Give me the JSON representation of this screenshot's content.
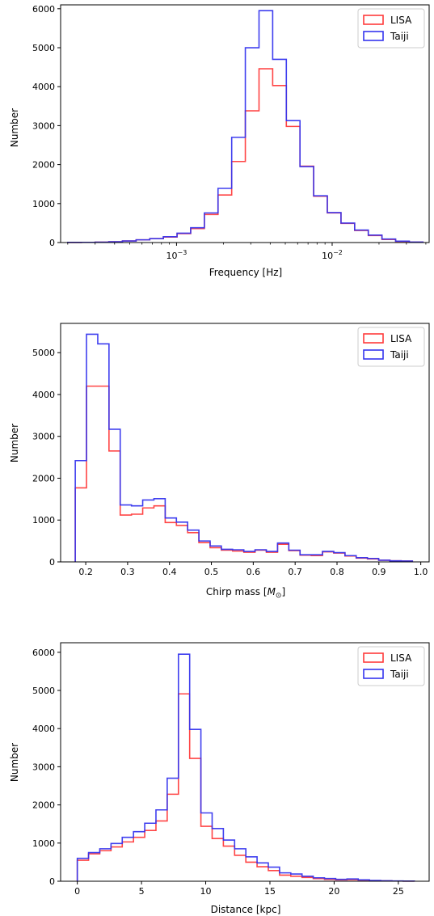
{
  "colors": {
    "LISA": "#ff3b3b",
    "Taiji": "#3535ee"
  },
  "chart_data": [
    {
      "type": "histogram",
      "xlabel": "Frequency [Hz]",
      "ylabel": "Number",
      "xscale": "log",
      "xlim": [
        0.00018,
        0.042
      ],
      "ylim": [
        0,
        6100
      ],
      "yticks": [
        0,
        1000,
        2000,
        3000,
        4000,
        5000,
        6000
      ],
      "xticks": [
        {
          "value": 0.001,
          "base": "10",
          "exp": "−3"
        },
        {
          "value": 0.01,
          "base": "10",
          "exp": "−2"
        }
      ],
      "legend": "top-right",
      "bin_edges": [
        0.0002,
        0.000245,
        0.0003,
        0.000367,
        0.000449,
        0.00055,
        0.000673,
        0.000823,
        0.001008,
        0.001233,
        0.00151,
        0.001848,
        0.002262,
        0.002768,
        0.003389,
        0.004148,
        0.005077,
        0.006214,
        0.007606,
        0.00931,
        0.011396,
        0.013948,
        0.017073,
        0.020897,
        0.025578,
        0.031308,
        0.03832
      ],
      "series": [
        {
          "name": "LISA",
          "values": [
            3,
            5,
            10,
            20,
            40,
            70,
            100,
            140,
            230,
            360,
            720,
            1220,
            2080,
            3380,
            4460,
            4030,
            2980,
            1960,
            1190,
            760,
            490,
            310,
            180,
            80,
            30,
            10
          ]
        },
        {
          "name": "Taiji",
          "values": [
            3,
            5,
            10,
            20,
            40,
            70,
            100,
            150,
            240,
            380,
            760,
            1390,
            2700,
            5000,
            5950,
            4700,
            3130,
            1950,
            1200,
            770,
            500,
            320,
            190,
            90,
            35,
            12
          ]
        }
      ]
    },
    {
      "type": "histogram",
      "xlabel_text": "Chirp mass [",
      "xlabel_math": "M",
      "xlabel_sub": "⊙",
      "xlabel_close": "]",
      "ylabel": "Number",
      "xscale": "linear",
      "xlim": [
        0.14,
        1.02
      ],
      "ylim": [
        0,
        5700
      ],
      "yticks": [
        0,
        1000,
        2000,
        3000,
        4000,
        5000
      ],
      "xticks": [
        {
          "value": 0.2,
          "label": "0.2"
        },
        {
          "value": 0.3,
          "label": "0.3"
        },
        {
          "value": 0.4,
          "label": "0.4"
        },
        {
          "value": 0.5,
          "label": "0.5"
        },
        {
          "value": 0.6,
          "label": "0.6"
        },
        {
          "value": 0.7,
          "label": "0.7"
        },
        {
          "value": 0.8,
          "label": "0.8"
        },
        {
          "value": 0.9,
          "label": "0.9"
        },
        {
          "value": 1.0,
          "label": "1.0"
        }
      ],
      "legend": "top-right",
      "bin_edges": [
        0.175,
        0.2018,
        0.2287,
        0.2555,
        0.2823,
        0.3092,
        0.336,
        0.3628,
        0.3897,
        0.4165,
        0.4433,
        0.4702,
        0.497,
        0.5238,
        0.5507,
        0.5775,
        0.6043,
        0.6312,
        0.658,
        0.6848,
        0.7117,
        0.7385,
        0.7653,
        0.7922,
        0.819,
        0.8458,
        0.8727,
        0.8995,
        0.9263,
        0.9532,
        0.98
      ],
      "series": [
        {
          "name": "LISA",
          "values": [
            1770,
            4200,
            4200,
            2650,
            1120,
            1140,
            1290,
            1340,
            940,
            870,
            700,
            460,
            340,
            280,
            260,
            230,
            280,
            230,
            420,
            270,
            160,
            150,
            240,
            210,
            140,
            90,
            70,
            40,
            25,
            20
          ]
        },
        {
          "name": "Taiji",
          "values": [
            2420,
            5440,
            5210,
            3170,
            1360,
            1340,
            1480,
            1510,
            1050,
            950,
            760,
            500,
            380,
            300,
            290,
            250,
            290,
            250,
            450,
            280,
            170,
            170,
            250,
            220,
            150,
            100,
            80,
            40,
            25,
            20
          ]
        }
      ]
    },
    {
      "type": "histogram",
      "xlabel": "Distance [kpc]",
      "ylabel": "Number",
      "xscale": "linear",
      "xlim": [
        -1.3,
        27.4
      ],
      "ylim": [
        0,
        6250
      ],
      "yticks": [
        0,
        1000,
        2000,
        3000,
        4000,
        5000,
        6000
      ],
      "xticks": [
        {
          "value": 0,
          "label": "0"
        },
        {
          "value": 5,
          "label": "5"
        },
        {
          "value": 10,
          "label": "10"
        },
        {
          "value": 15,
          "label": "15"
        },
        {
          "value": 20,
          "label": "20"
        },
        {
          "value": 25,
          "label": "25"
        }
      ],
      "legend": "top-right",
      "bin_edges": [
        0.0,
        0.875,
        1.75,
        2.625,
        3.5,
        4.375,
        5.25,
        6.125,
        7.0,
        7.875,
        8.75,
        9.625,
        10.5,
        11.375,
        12.25,
        13.125,
        14.0,
        14.875,
        15.75,
        16.625,
        17.5,
        18.375,
        19.25,
        20.125,
        21.0,
        21.875,
        22.75,
        23.625,
        24.5,
        25.375,
        26.25
      ],
      "series": [
        {
          "name": "LISA",
          "values": [
            550,
            720,
            800,
            900,
            1030,
            1150,
            1330,
            1580,
            2280,
            4910,
            3220,
            1440,
            1120,
            920,
            680,
            500,
            380,
            280,
            160,
            130,
            100,
            70,
            50,
            35,
            40,
            30,
            15,
            10,
            5,
            3
          ]
        },
        {
          "name": "Taiji",
          "values": [
            600,
            750,
            850,
            990,
            1150,
            1300,
            1520,
            1870,
            2700,
            5950,
            3980,
            1790,
            1380,
            1080,
            850,
            640,
            480,
            370,
            220,
            190,
            130,
            90,
            70,
            50,
            60,
            35,
            20,
            12,
            6,
            4
          ]
        }
      ]
    }
  ]
}
